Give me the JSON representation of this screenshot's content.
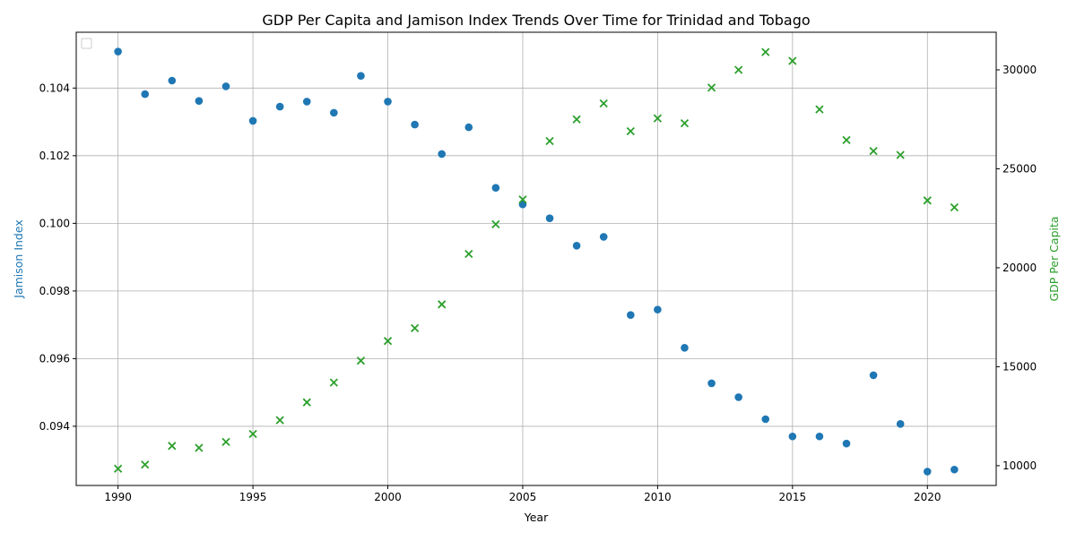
{
  "chart_data": {
    "type": "scatter",
    "title": "GDP Per Capita and Jamison Index Trends Over Time for Trinidad and Tobago",
    "xlabel": "Year",
    "ylabel_left": "Jamison Index",
    "ylabel_right": "GDP Per Capita",
    "xlim": [
      1988.45,
      2022.55
    ],
    "ylim_left": [
      0.09225,
      0.10565
    ],
    "ylim_right": [
      9000,
      31900
    ],
    "x_ticks": [
      1990,
      1995,
      2000,
      2005,
      2010,
      2015,
      2020
    ],
    "x_tick_labels": [
      "1990",
      "1995",
      "2000",
      "2005",
      "2010",
      "2015",
      "2020"
    ],
    "y_left_ticks": [
      0.094,
      0.096,
      0.098,
      0.1,
      0.102,
      0.104
    ],
    "y_left_tick_labels": [
      "0.094",
      "0.096",
      "0.098",
      "0.100",
      "0.102",
      "0.104"
    ],
    "y_right_ticks": [
      10000,
      15000,
      20000,
      25000,
      30000
    ],
    "y_right_tick_labels": [
      "10000",
      "15000",
      "20000",
      "25000",
      "30000"
    ],
    "grid": true,
    "legend": "upper-left (empty)",
    "x": [
      1990,
      1991,
      1992,
      1993,
      1994,
      1995,
      1996,
      1997,
      1998,
      1999,
      2000,
      2001,
      2002,
      2003,
      2004,
      2005,
      2006,
      2007,
      2008,
      2009,
      2010,
      2011,
      2012,
      2013,
      2014,
      2015,
      2016,
      2017,
      2018,
      2019,
      2020,
      2021
    ],
    "series": [
      {
        "axis": "left",
        "marker": "circle",
        "color": "#1f77b4",
        "values": [
          0.10508,
          0.10382,
          0.10422,
          0.10362,
          0.10405,
          0.10303,
          0.10345,
          0.1036,
          0.10327,
          0.10436,
          0.1036,
          0.10292,
          0.10205,
          0.10284,
          0.10105,
          0.10056,
          0.10015,
          0.09934,
          0.0996,
          0.09729,
          0.09745,
          0.09632,
          0.09527,
          0.09486,
          0.09421,
          0.0937,
          0.0937,
          0.09349,
          0.09551,
          0.09407,
          0.09266,
          0.09272
        ]
      },
      {
        "axis": "right",
        "marker": "x",
        "color": "#2ca02c",
        "values": [
          9850,
          10050,
          11000,
          10900,
          11200,
          11600,
          12300,
          13200,
          14200,
          15300,
          16300,
          16950,
          18150,
          20700,
          22200,
          23450,
          26400,
          27500,
          28300,
          26900,
          27550,
          27300,
          29100,
          30000,
          30900,
          30450,
          28000,
          26450,
          25900,
          25700,
          23400,
          23050
        ]
      }
    ]
  }
}
